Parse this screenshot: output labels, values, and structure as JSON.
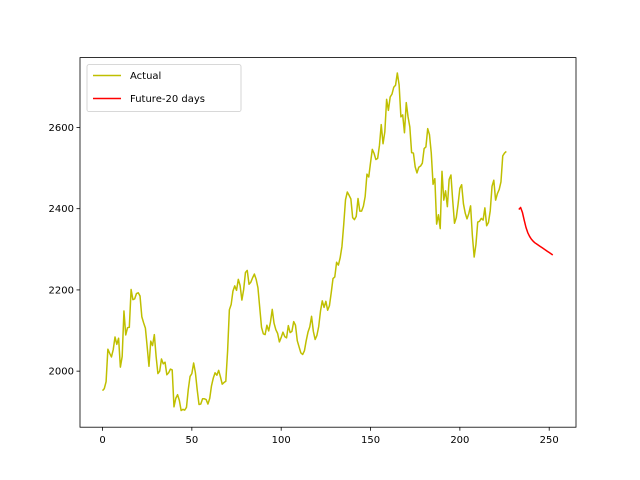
{
  "chart_data": {
    "type": "line",
    "title": "",
    "xlabel": "",
    "ylabel": "",
    "xlim": [
      -12.6,
      265.0
    ],
    "ylim": [
      1862,
      2772
    ],
    "xticks": [
      0,
      50,
      100,
      150,
      200,
      250
    ],
    "yticks": [
      2000,
      2200,
      2400,
      2600
    ],
    "grid": false,
    "legend_position": "top-left",
    "series": [
      {
        "name": "Actual",
        "color": "#bfbf00",
        "x_start": 0,
        "x_step": 1,
        "values": [
          1952,
          1957,
          1974,
          2054,
          2044,
          2035,
          2053,
          2084,
          2066,
          2081,
          2010,
          2036,
          2148,
          2089,
          2107,
          2108,
          2201,
          2176,
          2178,
          2191,
          2193,
          2185,
          2134,
          2119,
          2106,
          2060,
          2012,
          2074,
          2063,
          2090,
          2036,
          1994,
          2000,
          2030,
          2018,
          2022,
          1991,
          1996,
          2005,
          2003,
          1912,
          1933,
          1942,
          1928,
          1903,
          1906,
          1904,
          1911,
          1955,
          1987,
          1994,
          2020,
          1996,
          1954,
          1918,
          1919,
          1932,
          1932,
          1930,
          1919,
          1933,
          1964,
          1983,
          1996,
          1990,
          2002,
          1986,
          1968,
          1972,
          1975,
          2049,
          2151,
          2164,
          2197,
          2210,
          2199,
          2226,
          2211,
          2175,
          2201,
          2243,
          2248,
          2214,
          2219,
          2230,
          2239,
          2226,
          2205,
          2156,
          2108,
          2092,
          2090,
          2113,
          2099,
          2121,
          2152,
          2118,
          2102,
          2093,
          2072,
          2083,
          2096,
          2085,
          2082,
          2112,
          2095,
          2098,
          2122,
          2113,
          2075,
          2060,
          2045,
          2041,
          2050,
          2075,
          2096,
          2109,
          2135,
          2098,
          2078,
          2088,
          2110,
          2148,
          2173,
          2157,
          2172,
          2150,
          2161,
          2193,
          2228,
          2232,
          2268,
          2261,
          2279,
          2307,
          2361,
          2422,
          2441,
          2433,
          2424,
          2378,
          2373,
          2381,
          2425,
          2394,
          2394,
          2406,
          2430,
          2485,
          2478,
          2513,
          2546,
          2536,
          2521,
          2524,
          2556,
          2607,
          2560,
          2589,
          2669,
          2642,
          2675,
          2682,
          2699,
          2704,
          2734,
          2705,
          2626,
          2631,
          2587,
          2661,
          2626,
          2601,
          2538,
          2537,
          2503,
          2488,
          2502,
          2505,
          2512,
          2548,
          2552,
          2597,
          2582,
          2537,
          2460,
          2474,
          2362,
          2385,
          2351,
          2492,
          2421,
          2444,
          2405,
          2472,
          2483,
          2420,
          2364,
          2378,
          2411,
          2450,
          2459,
          2412,
          2389,
          2375,
          2388,
          2407,
          2334,
          2281,
          2312,
          2367,
          2369,
          2376,
          2372,
          2402,
          2358,
          2366,
          2395,
          2455,
          2470,
          2421,
          2437,
          2447,
          2466,
          2530,
          2537,
          2541
        ]
      },
      {
        "name": "Future-20 days",
        "color": "#ff0000",
        "x_start": 233,
        "x_step": 1,
        "values": [
          2398,
          2403,
          2391,
          2372,
          2354,
          2341,
          2332,
          2325,
          2320,
          2316,
          2313,
          2310,
          2307,
          2304,
          2301,
          2298,
          2295,
          2292,
          2289,
          2286
        ]
      }
    ]
  }
}
